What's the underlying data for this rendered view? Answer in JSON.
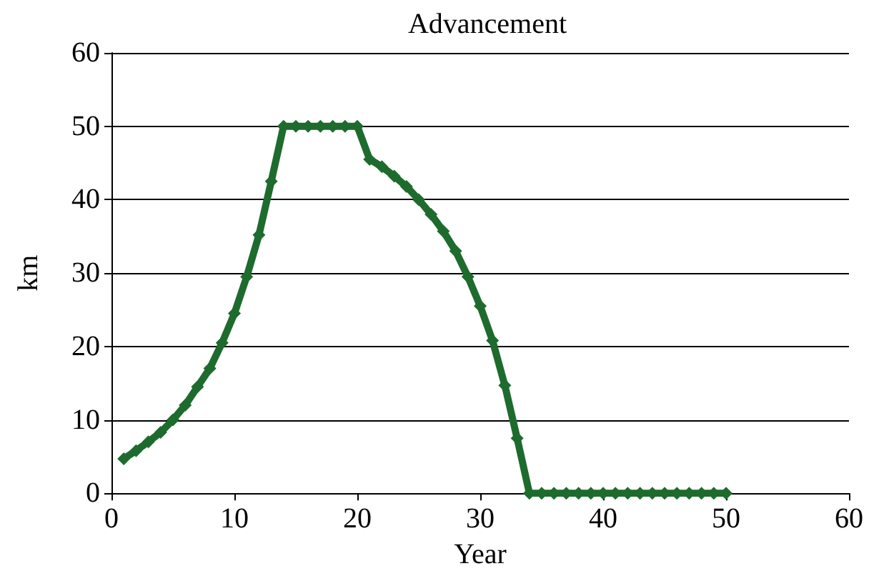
{
  "chart_data": {
    "type": "line",
    "title": "Advancement",
    "xlabel": "Year",
    "ylabel": "km",
    "x": [
      1,
      2,
      3,
      4,
      5,
      6,
      7,
      8,
      9,
      10,
      11,
      12,
      13,
      14,
      15,
      16,
      17,
      18,
      19,
      20,
      21,
      22,
      23,
      24,
      25,
      26,
      27,
      28,
      29,
      30,
      31,
      32,
      33,
      34,
      35,
      36,
      37,
      38,
      39,
      40,
      41,
      42,
      43,
      44,
      45,
      46,
      47,
      48,
      49,
      50
    ],
    "series": [
      {
        "color": "#1e6b2e",
        "values": [
          4.7,
          5.8,
          7,
          8.3,
          10,
          12,
          14.5,
          17,
          20.5,
          24.5,
          29.5,
          35.2,
          42.5,
          50,
          50,
          50,
          50,
          50,
          50,
          50,
          45.5,
          44.5,
          43.2,
          41.8,
          40,
          38,
          35.7,
          33,
          29.5,
          25.5,
          20.8,
          14.7,
          7.5,
          0,
          0,
          0,
          0,
          0,
          0,
          0,
          0,
          0,
          0,
          0,
          0,
          0,
          0,
          0,
          0,
          0
        ]
      }
    ],
    "xlim": [
      0,
      60
    ],
    "xticks": [
      0,
      10,
      20,
      30,
      40,
      50,
      60
    ],
    "ylim": [
      0,
      60
    ],
    "yticks": [
      0,
      10,
      20,
      30,
      40,
      50,
      60
    ],
    "grid": "y",
    "marker": "diamond",
    "line_style": "solid"
  }
}
